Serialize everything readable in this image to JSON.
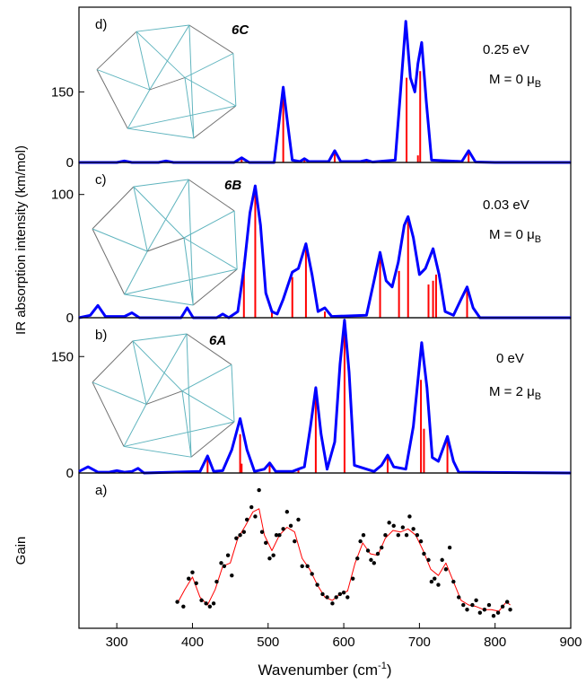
{
  "chart_data": [
    {
      "type": "spectrum",
      "panel_label": "d)",
      "structure_label": "6C",
      "energy": "0.25 eV",
      "moment": "M = 0 μ",
      "moment_sub": "B",
      "xlim": [
        250,
        900
      ],
      "ylim": [
        0,
        330
      ],
      "yticks": [
        0,
        150
      ],
      "curve": {
        "color": "#0000ff",
        "x": [
          250,
          300,
          310,
          320,
          355,
          365,
          375,
          455,
          465,
          475,
          508,
          514,
          520,
          526,
          532,
          542,
          548,
          554,
          580,
          588,
          596,
          622,
          630,
          638,
          668,
          675,
          682,
          688,
          694,
          698,
          703,
          709,
          716,
          756,
          765,
          774,
          800,
          900
        ],
        "values": [
          0,
          0,
          3,
          0,
          0,
          3,
          0,
          0,
          10,
          0,
          0,
          80,
          160,
          80,
          5,
          2,
          8,
          2,
          2,
          25,
          2,
          2,
          5,
          1,
          5,
          150,
          300,
          180,
          150,
          210,
          255,
          130,
          5,
          2,
          25,
          1,
          0,
          0
        ]
      },
      "sticks": {
        "color": "#ff0000",
        "x": [
          465,
          520,
          548,
          588,
          630,
          683,
          698,
          701,
          765
        ],
        "values": [
          12,
          155,
          6,
          22,
          4,
          180,
          15,
          194,
          22
        ]
      }
    },
    {
      "type": "spectrum",
      "panel_label": "c)",
      "structure_label": "6B",
      "energy": "0.03 eV",
      "moment": "M = 0 μ",
      "moment_sub": "B",
      "y_label": "IR absorption intensity (km/mol)",
      "xlim": [
        250,
        900
      ],
      "ylim": [
        0,
        126
      ],
      "yticks": [
        0,
        100
      ],
      "curve": {
        "color": "#0000ff",
        "x": [
          250,
          265,
          275,
          285,
          310,
          320,
          330,
          385,
          393,
          401,
          432,
          440,
          448,
          460,
          468,
          476,
          483,
          490,
          497,
          505,
          512,
          520,
          532,
          540,
          550,
          558,
          566,
          575,
          584,
          630,
          640,
          648,
          656,
          664,
          672,
          680,
          685,
          692,
          700,
          708,
          718,
          726,
          734,
          745,
          755,
          763,
          771,
          780,
          900
        ],
        "values": [
          0,
          2,
          10,
          1,
          1,
          4,
          0,
          0,
          8,
          0,
          0,
          3,
          0,
          5,
          40,
          85,
          107,
          75,
          20,
          5,
          3,
          15,
          37,
          40,
          60,
          35,
          5,
          8,
          1,
          2,
          30,
          53,
          30,
          25,
          45,
          75,
          82,
          65,
          35,
          40,
          56,
          35,
          5,
          2,
          15,
          25,
          8,
          0,
          0
        ]
      },
      "sticks": {
        "color": "#ff0000",
        "x": [
          468,
          483,
          505,
          532,
          550,
          575,
          648,
          673,
          685,
          712,
          718,
          722,
          763
        ],
        "values": [
          45,
          103,
          5,
          33,
          55,
          5,
          50,
          38,
          78,
          27,
          30,
          35,
          25
        ]
      }
    },
    {
      "type": "spectrum",
      "panel_label": "b)",
      "structure_label": "6A",
      "energy": "0 eV",
      "moment": "M = 2 μ",
      "moment_sub": "B",
      "xlim": [
        250,
        900
      ],
      "ylim": [
        0,
        200
      ],
      "yticks": [
        0,
        150
      ],
      "curve": {
        "color": "#0000ff",
        "x": [
          250,
          262,
          275,
          290,
          300,
          310,
          320,
          328,
          336,
          410,
          420,
          428,
          440,
          452,
          463,
          472,
          482,
          495,
          502,
          510,
          532,
          540,
          548,
          556,
          563,
          570,
          578,
          588,
          595,
          601,
          607,
          614,
          640,
          650,
          658,
          666,
          682,
          692,
          703,
          710,
          717,
          725,
          737,
          745,
          752,
          900
        ],
        "values": [
          2,
          8,
          1,
          1,
          3,
          1,
          2,
          6,
          0,
          2,
          22,
          2,
          3,
          30,
          70,
          30,
          2,
          5,
          13,
          2,
          2,
          5,
          8,
          60,
          110,
          50,
          5,
          40,
          140,
          197,
          130,
          10,
          2,
          10,
          23,
          8,
          5,
          60,
          168,
          110,
          20,
          15,
          47,
          15,
          1,
          0
        ]
      },
      "sticks": {
        "color": "#ff0000",
        "x": [
          420,
          463,
          465,
          502,
          540,
          563,
          601,
          658,
          702,
          706,
          737
        ],
        "values": [
          22,
          50,
          12,
          10,
          4,
          105,
          195,
          20,
          120,
          57,
          45
        ]
      }
    },
    {
      "type": "scatter",
      "panel_label": "a)",
      "y_label": "Gain",
      "x_label": "Wavenumber (cm",
      "x_label_sup": "-1",
      "x_label_end": ")",
      "xlim": [
        250,
        900
      ],
      "ylim": [
        0,
        1
      ],
      "xticks": [
        300,
        400,
        500,
        600,
        700,
        800,
        900
      ],
      "points": {
        "color": "#000000",
        "x": [
          380,
          388,
          395,
          400,
          405,
          412,
          418,
          423,
          428,
          432,
          438,
          442,
          447,
          452,
          458,
          463,
          468,
          472,
          478,
          483,
          488,
          492,
          497,
          502,
          507,
          511,
          515,
          520,
          525,
          530,
          535,
          540,
          545,
          552,
          558,
          565,
          572,
          578,
          585,
          590,
          595,
          600,
          605,
          612,
          618,
          622,
          626,
          632,
          636,
          640,
          645,
          650,
          655,
          660,
          666,
          672,
          678,
          683,
          687,
          692,
          697,
          702,
          706,
          712,
          716,
          720,
          725,
          730,
          735,
          740,
          745,
          752,
          758,
          763,
          770,
          775,
          780,
          786,
          792,
          798,
          804,
          810,
          816,
          820
        ],
        "values": [
          0.17,
          0.14,
          0.32,
          0.36,
          0.29,
          0.18,
          0.16,
          0.14,
          0.16,
          0.3,
          0.42,
          0.4,
          0.47,
          0.34,
          0.58,
          0.6,
          0.62,
          0.7,
          0.78,
          0.72,
          0.89,
          0.62,
          0.55,
          0.45,
          0.47,
          0.6,
          0.6,
          0.64,
          0.75,
          0.66,
          0.56,
          0.7,
          0.4,
          0.4,
          0.35,
          0.28,
          0.22,
          0.2,
          0.16,
          0.2,
          0.22,
          0.23,
          0.2,
          0.32,
          0.45,
          0.56,
          0.6,
          0.5,
          0.44,
          0.42,
          0.48,
          0.52,
          0.6,
          0.68,
          0.66,
          0.6,
          0.65,
          0.6,
          0.72,
          0.64,
          0.6,
          0.56,
          0.48,
          0.44,
          0.3,
          0.32,
          0.28,
          0.44,
          0.38,
          0.52,
          0.3,
          0.2,
          0.15,
          0.12,
          0.15,
          0.18,
          0.1,
          0.12,
          0.15,
          0.08,
          0.1,
          0.14,
          0.17,
          0.12
        ]
      },
      "line": {
        "color": "#ff0000",
        "x": [
          380,
          390,
          400,
          410,
          420,
          430,
          440,
          450,
          460,
          470,
          480,
          488,
          495,
          505,
          515,
          525,
          535,
          545,
          555,
          565,
          575,
          585,
          595,
          605,
          615,
          625,
          635,
          645,
          655,
          665,
          675,
          685,
          695,
          705,
          715,
          725,
          735,
          745,
          755,
          765,
          775,
          785,
          795,
          805,
          815,
          820
        ],
        "values": [
          0.16,
          0.25,
          0.33,
          0.2,
          0.15,
          0.25,
          0.4,
          0.42,
          0.58,
          0.66,
          0.75,
          0.77,
          0.6,
          0.5,
          0.6,
          0.65,
          0.62,
          0.45,
          0.38,
          0.28,
          0.2,
          0.18,
          0.22,
          0.24,
          0.42,
          0.55,
          0.48,
          0.47,
          0.58,
          0.63,
          0.62,
          0.64,
          0.6,
          0.5,
          0.38,
          0.34,
          0.42,
          0.3,
          0.18,
          0.15,
          0.14,
          0.12,
          0.12,
          0.11,
          0.17,
          0.15
        ]
      }
    }
  ]
}
